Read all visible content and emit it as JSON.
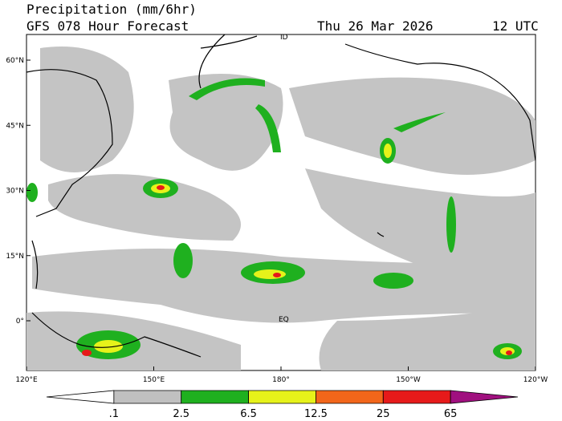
{
  "header": {
    "title": "Precipitation (mm/6hr)",
    "subtitle": "GFS 078 Hour Forecast",
    "date": "Thu 26 Mar 2026",
    "time": "12 UTC"
  },
  "map": {
    "lat_labels": [
      "60°N",
      "45°N",
      "30°N",
      "15°N",
      "0°"
    ],
    "lon_labels": [
      "120°E",
      "150°E",
      "180°",
      "150°W",
      "120°W"
    ],
    "annotations": [
      "EQ",
      "ID"
    ]
  },
  "colorbar": {
    "labels": [
      ".1",
      "2.5",
      "6.5",
      "12.5",
      "25",
      "65"
    ],
    "colors": [
      "#ffffff",
      "#c0c0c0",
      "#1fb01f",
      "#e6f21a",
      "#f2661a",
      "#e61a1a",
      "#a0107f"
    ]
  }
}
